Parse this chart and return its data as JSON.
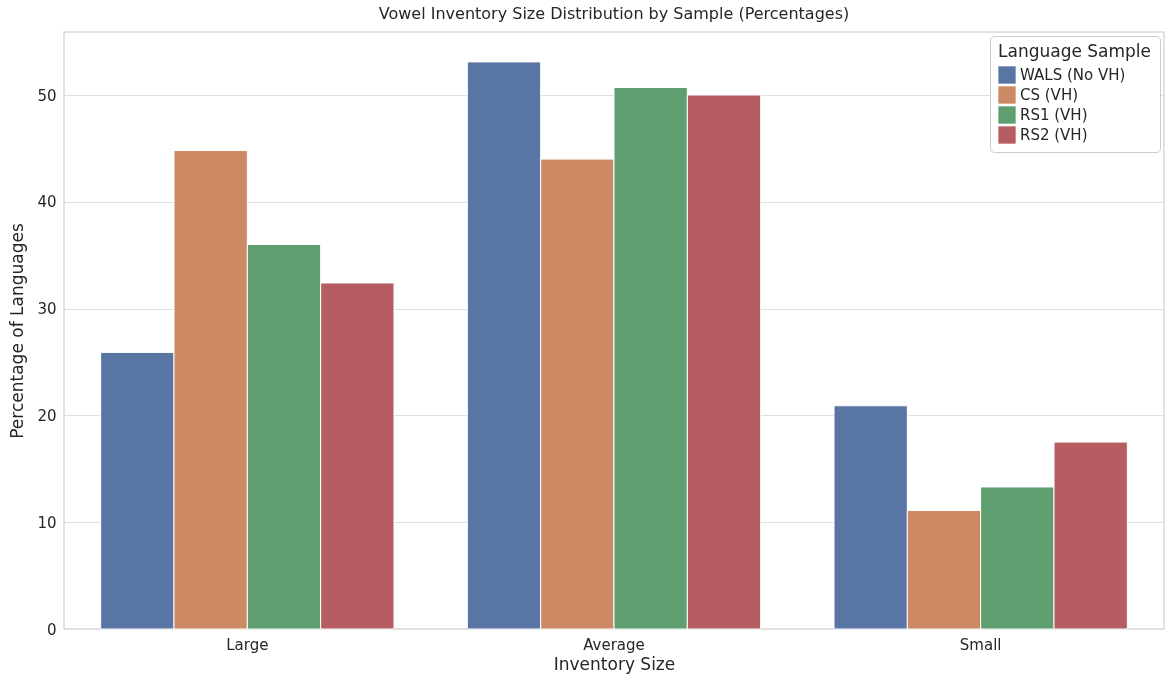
{
  "chart_data": {
    "type": "bar",
    "title": "Vowel Inventory Size Distribution by Sample (Percentages)",
    "xlabel": "Inventory Size",
    "ylabel": "Percentage of Languages",
    "legend_title": "Language Sample",
    "categories": [
      "Large",
      "Average",
      "Small"
    ],
    "series": [
      {
        "name": "WALS (No VH)",
        "color": "#5975a4",
        "values": [
          25.9,
          53.1,
          20.9
        ]
      },
      {
        "name": "CS (VH)",
        "color": "#cc8963",
        "values": [
          44.8,
          44.0,
          11.1
        ]
      },
      {
        "name": "RS1 (VH)",
        "color": "#5f9e6e",
        "values": [
          36.0,
          50.7,
          13.3
        ]
      },
      {
        "name": "RS2 (VH)",
        "color": "#b55d60",
        "values": [
          32.4,
          50.0,
          17.5
        ]
      }
    ],
    "ylim": [
      0,
      55.9
    ],
    "yticks": [
      0,
      10,
      20,
      30,
      40,
      50
    ],
    "grid": "y",
    "legend": "top right"
  }
}
